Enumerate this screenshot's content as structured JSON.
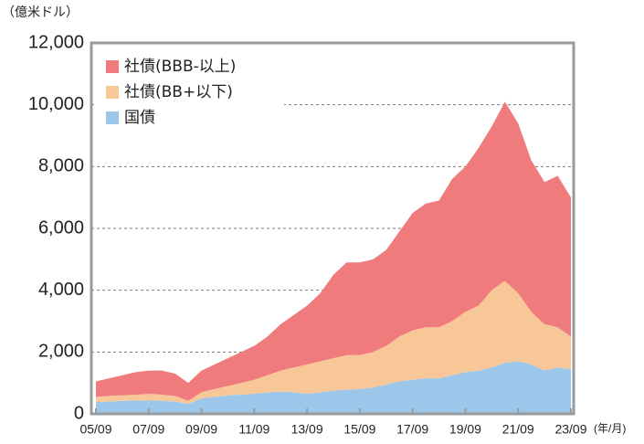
{
  "chart_data": {
    "type": "stacked_area",
    "y_label": "（億米ドル）",
    "x_unit": "(年/月)",
    "x": [
      "05/09",
      "06/03",
      "06/09",
      "07/03",
      "07/09",
      "08/03",
      "08/09",
      "09/03",
      "09/09",
      "10/03",
      "10/09",
      "11/03",
      "11/09",
      "12/03",
      "12/09",
      "13/03",
      "13/09",
      "14/03",
      "14/09",
      "15/03",
      "15/09",
      "16/03",
      "16/09",
      "17/03",
      "17/09",
      "18/03",
      "18/09",
      "19/03",
      "19/09",
      "20/03",
      "20/09",
      "21/03",
      "21/09",
      "22/03",
      "22/09",
      "23/03",
      "23/09"
    ],
    "series": [
      {
        "name": "社債(BBB-以上)",
        "color": "#ef7b7d",
        "values": [
          500,
          570,
          650,
          730,
          750,
          780,
          720,
          580,
          700,
          800,
          900,
          1000,
          1100,
          1250,
          1500,
          1700,
          1900,
          2200,
          2700,
          3000,
          3000,
          3000,
          3100,
          3400,
          3800,
          4000,
          4100,
          4600,
          4700,
          5100,
          5300,
          5800,
          5500,
          4900,
          4600,
          4900,
          4500
        ]
      },
      {
        "name": "社債(BB+以下)",
        "color": "#f8c797",
        "values": [
          170,
          180,
          180,
          190,
          210,
          200,
          180,
          100,
          200,
          250,
          300,
          380,
          450,
          550,
          680,
          800,
          950,
          1000,
          1050,
          1120,
          1100,
          1150,
          1250,
          1450,
          1600,
          1650,
          1650,
          1750,
          1950,
          2100,
          2500,
          2650,
          2200,
          1700,
          1500,
          1300,
          1050
        ]
      },
      {
        "name": "国債",
        "color": "#9cc6ea",
        "values": [
          380,
          400,
          420,
          430,
          440,
          420,
          400,
          320,
          500,
          550,
          600,
          620,
          650,
          700,
          720,
          700,
          650,
          700,
          750,
          780,
          800,
          850,
          950,
          1050,
          1100,
          1150,
          1150,
          1250,
          1350,
          1400,
          1500,
          1650,
          1700,
          1600,
          1400,
          1500,
          1450
        ]
      }
    ],
    "xticks": [
      "05/09",
      "07/09",
      "09/09",
      "11/09",
      "13/09",
      "15/09",
      "17/09",
      "19/09",
      "21/09",
      "23/09"
    ],
    "ylim": [
      0,
      12000
    ],
    "yticks": [
      0,
      {
        "value": 2000,
        "label": "2,000"
      },
      {
        "value": 4000,
        "label": "4,000"
      },
      {
        "value": 6000,
        "label": "6,000"
      },
      {
        "value": 8000,
        "label": "8,000"
      },
      {
        "value": 10000,
        "label": "10,000"
      },
      {
        "value": 12000,
        "label": "12,000"
      }
    ],
    "grid": true,
    "legend": "upper left"
  }
}
